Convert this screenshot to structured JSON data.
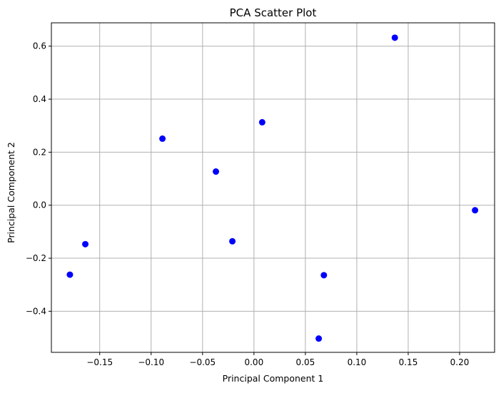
{
  "chart_data": {
    "type": "scatter",
    "title": "PCA Scatter Plot",
    "xlabel": "Principal Component 1",
    "ylabel": "Principal Component 2",
    "xlim": [
      -0.197,
      0.234
    ],
    "ylim": [
      -0.555,
      0.688
    ],
    "xticks": [
      -0.15,
      -0.1,
      -0.05,
      0.0,
      0.05,
      0.1,
      0.15,
      0.2
    ],
    "xtick_labels": [
      "−0.15",
      "−0.10",
      "−0.05",
      "0.00",
      "0.05",
      "0.10",
      "0.15",
      "0.20"
    ],
    "yticks": [
      -0.4,
      -0.2,
      0.0,
      0.2,
      0.4,
      0.6
    ],
    "ytick_labels": [
      "−0.4",
      "−0.2",
      "0.0",
      "0.2",
      "0.4",
      "0.6"
    ],
    "grid": true,
    "marker_color": "#0000ff",
    "grid_color": "#b0b0b0",
    "points": [
      {
        "x": 0.137,
        "y": 0.632
      },
      {
        "x": 0.008,
        "y": 0.313
      },
      {
        "x": -0.089,
        "y": 0.251
      },
      {
        "x": -0.037,
        "y": 0.127
      },
      {
        "x": 0.215,
        "y": -0.019
      },
      {
        "x": -0.021,
        "y": -0.136
      },
      {
        "x": -0.164,
        "y": -0.147
      },
      {
        "x": -0.179,
        "y": -0.262
      },
      {
        "x": 0.068,
        "y": -0.264
      },
      {
        "x": 0.063,
        "y": -0.503
      }
    ]
  }
}
